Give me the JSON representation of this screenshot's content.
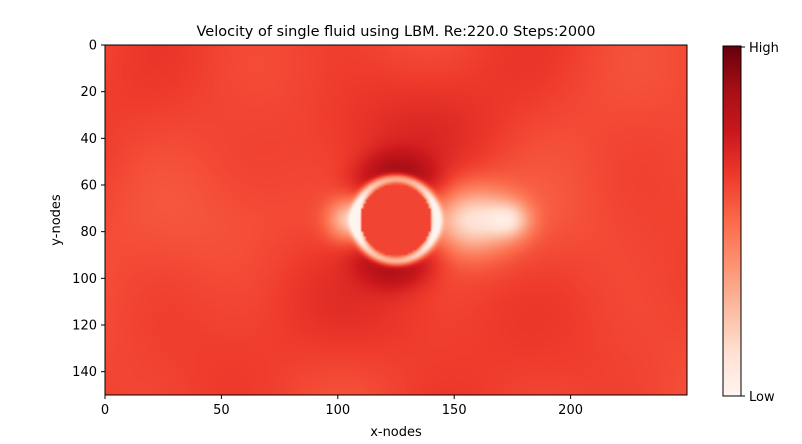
{
  "chart_data": {
    "type": "heatmap",
    "title": "Velocity of single fluid using LBM. Re:220.0 Steps:2000",
    "xlabel": "x-nodes",
    "ylabel": "y-nodes",
    "xlim": [
      0,
      250
    ],
    "ylim": [
      150,
      0
    ],
    "y_axis_inverted": true,
    "x_ticks": [
      0,
      50,
      100,
      150,
      200
    ],
    "y_ticks": [
      0,
      20,
      40,
      60,
      80,
      100,
      120,
      140
    ],
    "colormap": "Reds",
    "colormap_stops": [
      "#fff5f0",
      "#fee0d2",
      "#fcbba1",
      "#fc9272",
      "#fb6a4a",
      "#ef3b2c",
      "#cb181d",
      "#a50f15",
      "#67000d"
    ],
    "colorbar": {
      "high_label": "High",
      "low_label": "Low"
    },
    "obstacle": {
      "shape": "circle",
      "center_x": 125,
      "center_y": 75,
      "radius": 16
    },
    "grid": false
  }
}
